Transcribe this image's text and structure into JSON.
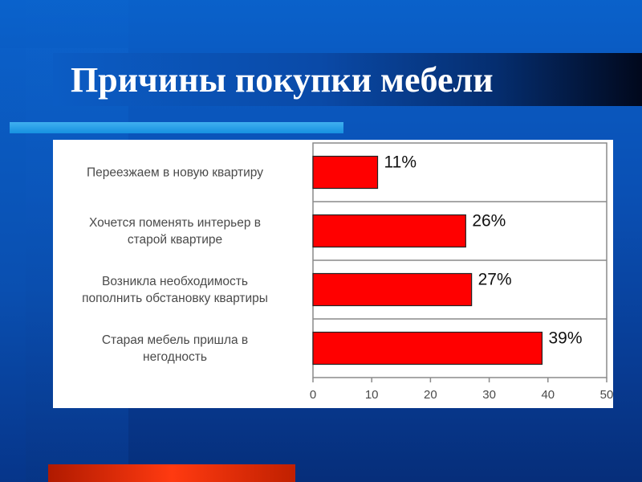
{
  "slide": {
    "title": "Причины покупки мебели"
  },
  "colors": {
    "bar": "#ff0000",
    "background": "#0a50b4",
    "accent": "#1690e0"
  },
  "chart_data": {
    "type": "bar",
    "orientation": "horizontal",
    "categories": [
      [
        "Переезжаем в новую квартиру"
      ],
      [
        "Хочется поменять интерьер в",
        "старой квартире"
      ],
      [
        "Возникла необходимость",
        "пополнить обстановку квартиры"
      ],
      [
        "Старая мебель пришла в",
        "негодность"
      ]
    ],
    "values": [
      11,
      26,
      27,
      39
    ],
    "data_labels": [
      "11%",
      "26%",
      "27%",
      "39%"
    ],
    "xlim": [
      0,
      50
    ],
    "xticks": [
      "0",
      "10",
      "20",
      "30",
      "40",
      "50"
    ],
    "grid": "horizontal separators",
    "legend": "none"
  }
}
